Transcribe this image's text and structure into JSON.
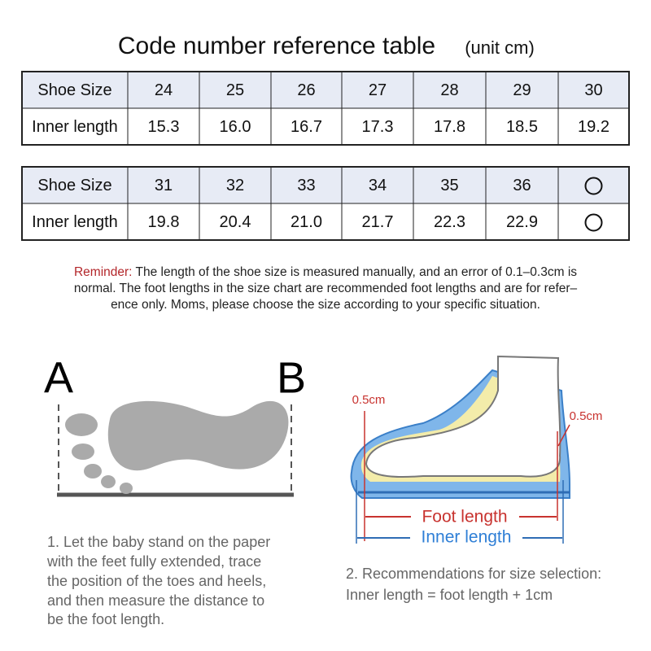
{
  "title": {
    "main": "Code number reference table",
    "unit": "(unit cm)"
  },
  "tables": [
    {
      "header": [
        "Shoe Size",
        "24",
        "25",
        "26",
        "27",
        "28",
        "29",
        "30"
      ],
      "row": [
        "Inner length",
        "15.3",
        "16.0",
        "16.7",
        "17.3",
        "17.8",
        "18.5",
        "19.2"
      ]
    },
    {
      "header": [
        "Shoe Size",
        "31",
        "32",
        "33",
        "34",
        "35",
        "36"
      ],
      "row": [
        "Inner length",
        "19.8",
        "20.4",
        "21.0",
        "21.7",
        "22.3",
        "22.9"
      ]
    }
  ],
  "reminder": {
    "label": "Reminder:",
    "lines": [
      "The length of the shoe size is measured manually, and an error of 0.1–0.3cm is",
      "normal. The foot lengths in the size chart are recommended foot lengths and are for refer–",
      "ence only. Moms, please choose the size according to your specific situation."
    ]
  },
  "diagram": {
    "marker_a": "A",
    "marker_b": "B",
    "toe_gap": "0.5cm",
    "heel_gap": "0.5cm",
    "foot_length": "Foot length",
    "inner_length": "Inner length"
  },
  "steps": [
    [
      "1. Let the baby stand on the paper",
      "with the feet fully extended, trace",
      "the position of the toes and heels,",
      "and then measure the distance to",
      "be the foot length."
    ],
    [
      "2. Recommendations for size selection:",
      "Inner length = foot length + 1cm"
    ]
  ]
}
